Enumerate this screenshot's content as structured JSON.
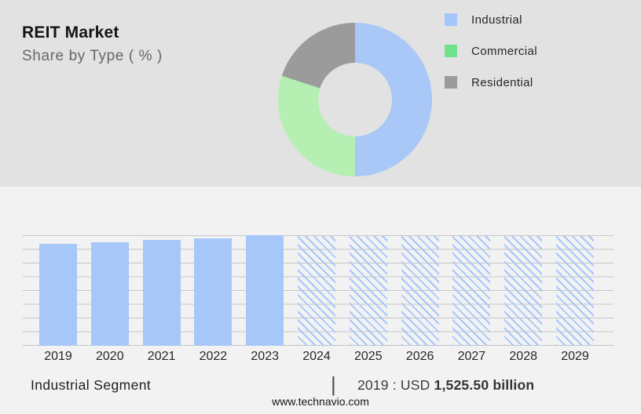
{
  "header": {
    "title": "REIT Market",
    "subtitle": "Share by Type ( % )"
  },
  "donut": {
    "legend": [
      {
        "label": "Industrial",
        "color": "#a3c7fa"
      },
      {
        "label": "Commercial",
        "color": "#70e18c"
      },
      {
        "label": "Residential",
        "color": "#9b9b9b"
      }
    ],
    "segments": [
      {
        "label": "Industrial",
        "value": 50,
        "color": "#a9c8f8"
      },
      {
        "label": "Commercial",
        "value": 30,
        "color": "#b5efb2"
      },
      {
        "label": "Residential",
        "value": 20,
        "color": "#9b9b9b"
      }
    ]
  },
  "chart_data": {
    "type": "bar",
    "title": "",
    "xlabel": "",
    "ylabel": "",
    "grid": true,
    "gridlines_count": 9,
    "categories": [
      "2019",
      "2020",
      "2021",
      "2022",
      "2023",
      "2024",
      "2025",
      "2026",
      "2027",
      "2028",
      "2029"
    ],
    "series": [
      {
        "name": "Industrial Segment",
        "values": [
          130,
          132,
          135,
          137,
          141,
          140,
          140,
          140,
          140,
          140,
          140
        ],
        "value_units": "relative bar height in px (no y-axis scale shown)",
        "styles": [
          "solid",
          "solid",
          "solid",
          "solid",
          "solid",
          "hatched",
          "hatched",
          "hatched",
          "hatched",
          "hatched",
          "hatched"
        ]
      }
    ],
    "historical_years": [
      "2019",
      "2020",
      "2021",
      "2022",
      "2023"
    ],
    "forecast_years_hatched": [
      "2024",
      "2025",
      "2026",
      "2027",
      "2028",
      "2029"
    ],
    "known_values": {
      "2019": "USD 1,525.50 billion"
    },
    "legend_position": "none"
  },
  "footer": {
    "segment_label": "Industrial Segment",
    "separator": "|",
    "value_prefix": "2019 : USD ",
    "value_bold": "1,525.50 billion",
    "website": "www.technavio.com"
  },
  "colors": {
    "header_bg": "#e2e2e2",
    "body_bg": "#f2f2f3",
    "bar_blue": "#a7c7f9",
    "gridline": "#c5c5c5"
  }
}
